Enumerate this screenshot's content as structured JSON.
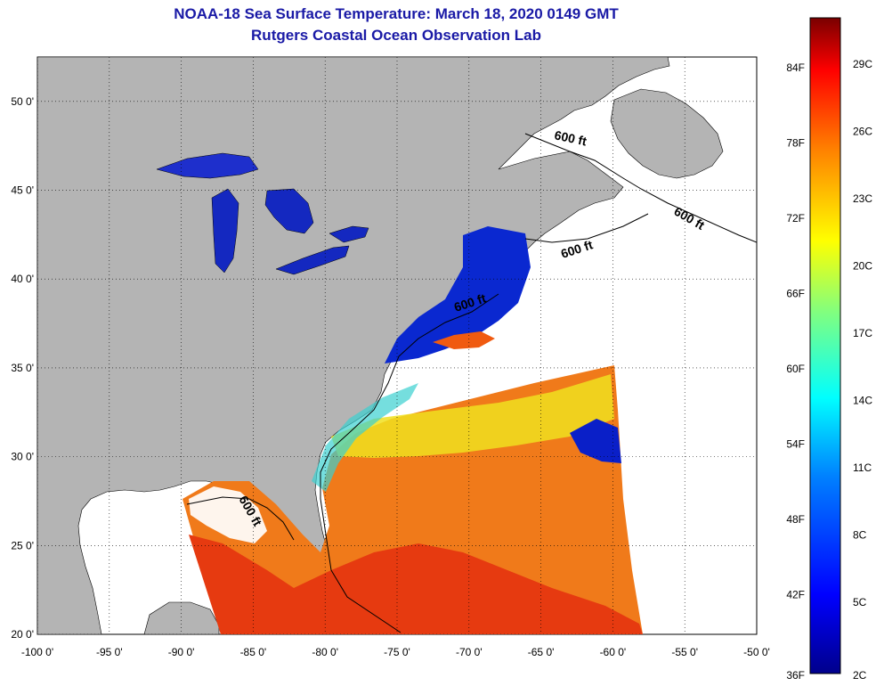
{
  "title": {
    "line1": "NOAA-18 Sea Surface Temperature:  March 18, 2020 0149 GMT",
    "line2": "Rutgers Coastal Ocean Observation Lab"
  },
  "map": {
    "lon_range": [
      -100,
      -50
    ],
    "lat_range": [
      20,
      52.5
    ],
    "lon_ticks": [
      {
        "value": -100,
        "label": "-100 0'"
      },
      {
        "value": -95,
        "label": "-95 0'"
      },
      {
        "value": -90,
        "label": "-90 0'"
      },
      {
        "value": -85,
        "label": "-85 0'"
      },
      {
        "value": -80,
        "label": "-80 0'"
      },
      {
        "value": -75,
        "label": "-75 0'"
      },
      {
        "value": -70,
        "label": "-70 0'"
      },
      {
        "value": -65,
        "label": "-65 0'"
      },
      {
        "value": -60,
        "label": "-60 0'"
      },
      {
        "value": -55,
        "label": "-55 0'"
      },
      {
        "value": -50,
        "label": "-50 0'"
      }
    ],
    "lat_ticks": [
      {
        "value": 50,
        "label": "50 0'"
      },
      {
        "value": 45,
        "label": "45 0'"
      },
      {
        "value": 40,
        "label": "40 0'"
      },
      {
        "value": 35,
        "label": "35 0'"
      },
      {
        "value": 30,
        "label": "30 0'"
      },
      {
        "value": 25,
        "label": "25 0'"
      },
      {
        "value": 20,
        "label": "20 0'"
      }
    ],
    "grid": "dotted",
    "contour_label": "600 ft",
    "colors": {
      "land": "#b4b4b4",
      "no_data": "#ffffff",
      "cold": "#0a1fc8",
      "warm": "#f05a10"
    }
  },
  "colorbar": {
    "fahrenheit_labels": [
      "84F",
      "78F",
      "72F",
      "66F",
      "60F",
      "54F",
      "48F",
      "42F",
      "36F"
    ],
    "celsius_labels": [
      "29C",
      "26C",
      "23C",
      "20C",
      "17C",
      "14C",
      "11C",
      "8C",
      "5C",
      "2C"
    ],
    "gradient": [
      "#00008b",
      "#0000ff",
      "#0080ff",
      "#00ffff",
      "#80ff80",
      "#ffff00",
      "#ff8000",
      "#ff0000",
      "#7a0000"
    ]
  }
}
